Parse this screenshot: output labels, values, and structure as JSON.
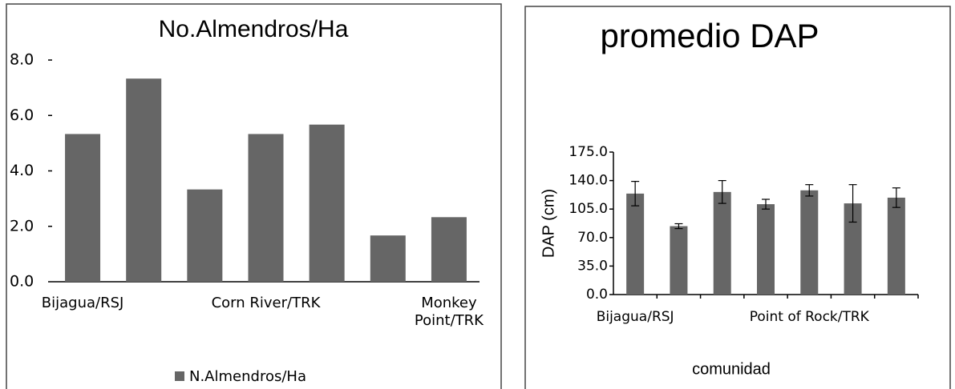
{
  "chart_data": [
    {
      "type": "bar",
      "title": "No.Almendros/Ha",
      "categories": [
        "Bijagua/RSJ",
        null,
        null,
        "Corn River/TRK",
        null,
        null,
        "Monkey Point/TRK"
      ],
      "series": [
        {
          "name": "N.Almendros/Ha",
          "color": "#666666",
          "values": [
            5.33,
            7.33,
            3.33,
            5.33,
            5.67,
            1.67,
            2.33
          ]
        }
      ],
      "ylim": [
        0,
        8
      ],
      "yticks": [
        {
          "value": 0,
          "label": "0.0"
        },
        {
          "value": 2,
          "label": "2.0"
        },
        {
          "value": 4,
          "label": "4.0"
        },
        {
          "value": 6,
          "label": "6.0"
        },
        {
          "value": 8,
          "label": "8.0"
        }
      ],
      "grid": false,
      "legend": "bottom"
    },
    {
      "type": "bar",
      "title": "promedio DAP",
      "y_label": "DAP (cm)",
      "x_label": "comunidad",
      "categories": [
        "Bijagua/RSJ",
        null,
        null,
        null,
        "Point of Rock/TRK",
        null,
        null
      ],
      "values": [
        124,
        84,
        126,
        111,
        128,
        112,
        119
      ],
      "errors": [
        15,
        3,
        14,
        6,
        7,
        23,
        12
      ],
      "color": "#666666",
      "ylim": [
        0,
        175
      ],
      "yticks": [
        {
          "value": 0,
          "label": "0.0"
        },
        {
          "value": 35,
          "label": "35.0"
        },
        {
          "value": 70,
          "label": "70.0"
        },
        {
          "value": 105,
          "label": "105.0"
        },
        {
          "value": 140,
          "label": "140.0"
        },
        {
          "value": 175,
          "label": "175.0"
        }
      ],
      "grid": false
    }
  ]
}
